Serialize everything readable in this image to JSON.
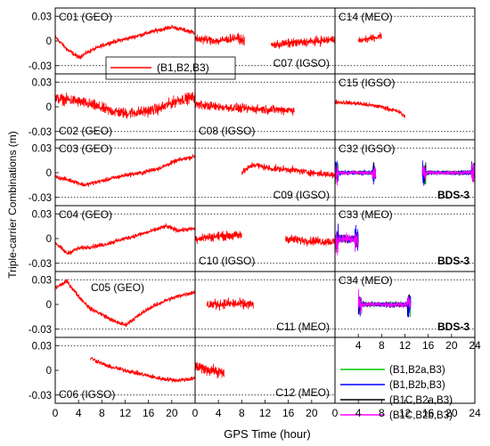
{
  "chart_data": {
    "type": "line",
    "ylabel": "Triple-carrier Combinations (m)",
    "xlabel": "GPS Time (hour)",
    "x_ticks": [
      0,
      4,
      8,
      12,
      16,
      20,
      24
    ],
    "xlim": [
      0,
      24
    ],
    "ylim": [
      -0.04,
      0.04
    ],
    "y_ticks": [
      "0.03",
      "0",
      "-0.03"
    ],
    "y_tick_values": [
      0.03,
      0,
      -0.03
    ],
    "grid": "dotted horizontal lines at ±0.03",
    "colors": {
      "main": "#ff0000",
      "b2a": "#00cc00",
      "b2b": "#0000ff",
      "b1c_b2a": "#000000",
      "b1c_b2b": "#ff00ff"
    },
    "legend_main": {
      "label": "(B1,B2,B3)",
      "placement": "inside C01 panel, lower-right"
    },
    "legend_bds3": {
      "placement": "bottom-right cell",
      "entries": [
        {
          "label": "(B1,B2a,B3)",
          "color": "#00cc00"
        },
        {
          "label": "(B1,B2b,B3)",
          "color": "#0000ff"
        },
        {
          "label": "(B1C,B2a,B3)",
          "color": "#000000"
        },
        {
          "label": "(B1C,B2b,B3)",
          "color": "#ff00ff"
        }
      ]
    },
    "panels": [
      {
        "label": "C01 (GEO)",
        "row": 0,
        "col": 0,
        "segments": [
          [
            0,
            24
          ]
        ],
        "trend": [
          [
            0,
            0.005
          ],
          [
            2,
            -0.01
          ],
          [
            4,
            -0.02
          ],
          [
            6,
            -0.012
          ],
          [
            9,
            -0.003
          ],
          [
            13,
            0.004
          ],
          [
            17,
            0.012
          ],
          [
            20,
            0.017
          ],
          [
            24,
            0.01
          ]
        ],
        "noise": 0.004
      },
      {
        "label": "C02 (GEO)",
        "row": 1,
        "col": 0,
        "segments": [
          [
            0,
            24
          ]
        ],
        "trend": [
          [
            0,
            0.01
          ],
          [
            3,
            0.008
          ],
          [
            6,
            0.003
          ],
          [
            9,
            -0.004
          ],
          [
            12,
            -0.008
          ],
          [
            15,
            -0.006
          ],
          [
            18,
            -0.002
          ],
          [
            21,
            0.008
          ],
          [
            24,
            0.012
          ]
        ],
        "noise": 0.01
      },
      {
        "label": "C03 (GEO)",
        "row": 2,
        "col": 0,
        "segments": [
          [
            0,
            24
          ]
        ],
        "trend": [
          [
            0,
            -0.005
          ],
          [
            3,
            -0.01
          ],
          [
            5,
            -0.015
          ],
          [
            8,
            -0.01
          ],
          [
            12,
            -0.003
          ],
          [
            15,
            0.0
          ],
          [
            18,
            0.006
          ],
          [
            21,
            0.015
          ],
          [
            24,
            0.02
          ]
        ],
        "noise": 0.004
      },
      {
        "label": "C04 (GEO)",
        "row": 3,
        "col": 0,
        "segments": [
          [
            0,
            24
          ]
        ],
        "trend": [
          [
            0,
            -0.005
          ],
          [
            2,
            -0.018
          ],
          [
            4,
            -0.012
          ],
          [
            8,
            -0.008
          ],
          [
            12,
            0.0
          ],
          [
            16,
            0.008
          ],
          [
            19,
            0.015
          ],
          [
            21,
            0.01
          ],
          [
            24,
            0.012
          ]
        ],
        "noise": 0.004
      },
      {
        "label": "C05 (GEO)",
        "row": 4,
        "col": 0,
        "segments": [
          [
            0,
            24
          ]
        ],
        "trend": [
          [
            0,
            0.02
          ],
          [
            2,
            0.028
          ],
          [
            4,
            0.01
          ],
          [
            6,
            -0.005
          ],
          [
            8,
            -0.012
          ],
          [
            10,
            -0.02
          ],
          [
            12,
            -0.025
          ],
          [
            14,
            -0.015
          ],
          [
            16,
            -0.005
          ],
          [
            19,
            0.005
          ],
          [
            22,
            0.012
          ],
          [
            24,
            0.015
          ]
        ],
        "noise": 0.004
      },
      {
        "label": "C06 (IGSO)",
        "row": 5,
        "col": 0,
        "segments": [
          [
            6,
            24
          ]
        ],
        "trend": [
          [
            6,
            0.015
          ],
          [
            9,
            0.005
          ],
          [
            12,
            0.0
          ],
          [
            15,
            -0.005
          ],
          [
            18,
            -0.01
          ],
          [
            21,
            -0.012
          ],
          [
            24,
            -0.01
          ]
        ],
        "noise": 0.004
      },
      {
        "label": "C07 (IGSO)",
        "row": 0,
        "col": 1,
        "segments": [
          [
            0,
            8.5
          ],
          [
            13,
            24
          ]
        ],
        "trend": [
          [
            0,
            0.003
          ],
          [
            4,
            0.0
          ],
          [
            7,
            0.004
          ],
          [
            8.5,
            0.0
          ],
          [
            13,
            -0.005
          ],
          [
            16,
            -0.003
          ],
          [
            20,
            -0.001
          ],
          [
            24,
            0.002
          ]
        ],
        "noise": 0.008
      },
      {
        "label": "C08 (IGSO)",
        "row": 1,
        "col": 1,
        "segments": [
          [
            0,
            17
          ]
        ],
        "trend": [
          [
            0,
            0.003
          ],
          [
            4,
            0.0
          ],
          [
            8,
            -0.002
          ],
          [
            12,
            -0.003
          ],
          [
            17,
            -0.004
          ]
        ],
        "noise": 0.008
      },
      {
        "label": "C09 (IGSO)",
        "row": 2,
        "col": 1,
        "segments": [
          [
            8,
            24
          ]
        ],
        "trend": [
          [
            8,
            0.0
          ],
          [
            10,
            0.01
          ],
          [
            13,
            0.005
          ],
          [
            16,
            0.004
          ],
          [
            20,
            0.0
          ],
          [
            24,
            -0.003
          ]
        ],
        "noise": 0.006
      },
      {
        "label": "C10 (IGSO)",
        "row": 3,
        "col": 1,
        "segments": [
          [
            0,
            8
          ],
          [
            15.5,
            24
          ]
        ],
        "trend": [
          [
            0,
            0.0
          ],
          [
            4,
            0.003
          ],
          [
            8,
            0.004
          ],
          [
            15.5,
            0.0
          ],
          [
            18,
            -0.002
          ],
          [
            24,
            -0.004
          ]
        ],
        "noise": 0.008
      },
      {
        "label": "C11 (MEO)",
        "row": 4,
        "col": 1,
        "segments": [
          [
            2,
            10
          ]
        ],
        "trend": [
          [
            2,
            0.0
          ],
          [
            6,
            0.001
          ],
          [
            10,
            0.0
          ]
        ],
        "noise": 0.009
      },
      {
        "label": "C12 (MEO)",
        "row": 5,
        "col": 1,
        "segments": [
          [
            0,
            5
          ]
        ],
        "trend": [
          [
            0,
            0.004
          ],
          [
            3,
            0.0
          ],
          [
            5,
            -0.004
          ]
        ],
        "noise": 0.01
      },
      {
        "label": "C14 (MEO)",
        "row": 0,
        "col": 2,
        "segments": [
          [
            4,
            8
          ]
        ],
        "trend": [
          [
            4,
            0.0
          ],
          [
            6,
            0.003
          ],
          [
            8,
            0.006
          ]
        ],
        "noise": 0.006
      },
      {
        "label": "C15 (IGSO)",
        "row": 1,
        "col": 2,
        "segments": [
          [
            0,
            12
          ]
        ],
        "trend": [
          [
            0,
            0.006
          ],
          [
            4,
            0.004
          ],
          [
            8,
            0.0
          ],
          [
            11,
            -0.006
          ],
          [
            12,
            -0.012
          ]
        ],
        "noise": 0.004
      },
      {
        "label": "C32 (IGSO)",
        "row": 2,
        "col": 2,
        "tag": "BDS-3",
        "segments": [
          [
            0,
            7
          ],
          [
            15,
            24
          ]
        ],
        "trend": [
          [
            0,
            0.0
          ],
          [
            7,
            0.0
          ],
          [
            15,
            0.0
          ],
          [
            24,
            0.0
          ]
        ],
        "noise": 0.004,
        "multi": true
      },
      {
        "label": "C33 (MEO)",
        "row": 3,
        "col": 2,
        "tag": "BDS-3",
        "segments": [
          [
            0,
            4
          ]
        ],
        "trend": [
          [
            0,
            0.0
          ],
          [
            4,
            0.0
          ]
        ],
        "noise": 0.008,
        "multi": true
      },
      {
        "label": "C34 (MEO)",
        "row": 4,
        "col": 2,
        "tag": "BDS-3",
        "segments": [
          [
            4,
            13
          ]
        ],
        "trend": [
          [
            4,
            0.0
          ],
          [
            13,
            0.0
          ]
        ],
        "noise": 0.005,
        "multi": true
      }
    ]
  }
}
